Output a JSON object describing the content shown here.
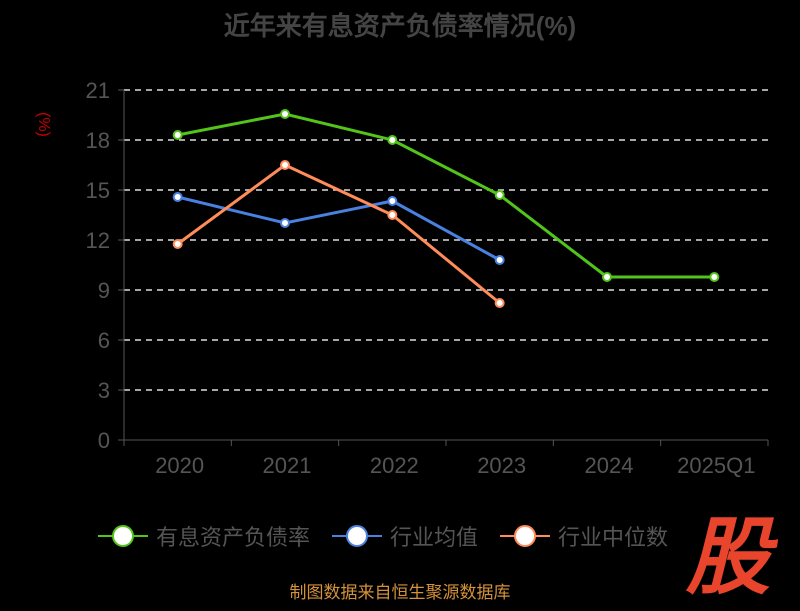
{
  "chart_data": {
    "type": "line",
    "title": "近年来有息资产负债率情况(%)",
    "ylabel": "(%)",
    "xlabel": "",
    "categories": [
      "2020",
      "2021",
      "2022",
      "2023",
      "2024",
      "2025Q1"
    ],
    "ylim": [
      0,
      21
    ],
    "yticks": [
      0,
      3,
      6,
      9,
      12,
      15,
      18,
      21
    ],
    "grid": true,
    "legend_position": "bottom",
    "series": [
      {
        "name": "有息资产负债率",
        "color": "#52c41a",
        "values": [
          18.3,
          19.56,
          18.0,
          14.7,
          9.78,
          9.78
        ]
      },
      {
        "name": "行业均值",
        "color": "#4a80e0",
        "values": [
          14.58,
          13.02,
          14.34,
          10.8,
          null,
          null
        ]
      },
      {
        "name": "行业中位数",
        "color": "#ff8c5a",
        "values": [
          11.76,
          16.5,
          13.5,
          8.22,
          null,
          null
        ]
      }
    ]
  },
  "source": "制图数据来自恒生聚源数据库",
  "watermark": "股"
}
